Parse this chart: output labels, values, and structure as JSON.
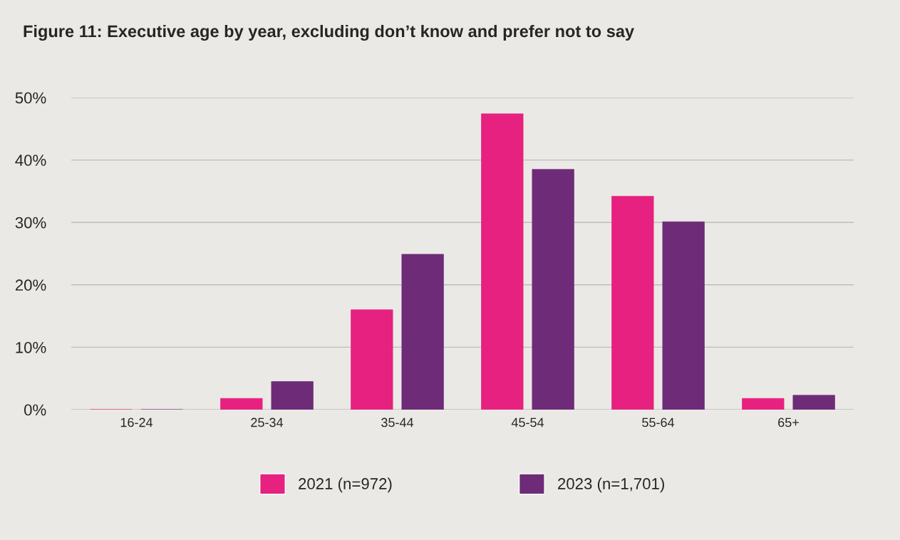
{
  "chart_data": {
    "type": "bar",
    "title": "Figure 11: Executive age by year, excluding don’t know and prefer not to say",
    "categories": [
      "16-24",
      "25-34",
      "35-44",
      "45-54",
      "55-64",
      "65+"
    ],
    "series": [
      {
        "name": "2021 (n=972)",
        "color": "#e6217f",
        "values": [
          0,
          1.8,
          16,
          47.4,
          34.2,
          1.8
        ]
      },
      {
        "name": "2023 (n=1,701)",
        "color": "#6e2c78",
        "values": [
          0,
          4.5,
          24.9,
          38.5,
          30.1,
          2.3
        ]
      }
    ],
    "ylim": [
      0,
      50
    ],
    "yticks": [
      {
        "value": 0,
        "label": "0%"
      },
      {
        "value": 10,
        "label": "10%"
      },
      {
        "value": 20,
        "label": "20%"
      },
      {
        "value": 30,
        "label": "30%"
      },
      {
        "value": 40,
        "label": "40%"
      },
      {
        "value": 50,
        "label": "50%"
      }
    ],
    "grid": "y",
    "legend": "bottom"
  }
}
